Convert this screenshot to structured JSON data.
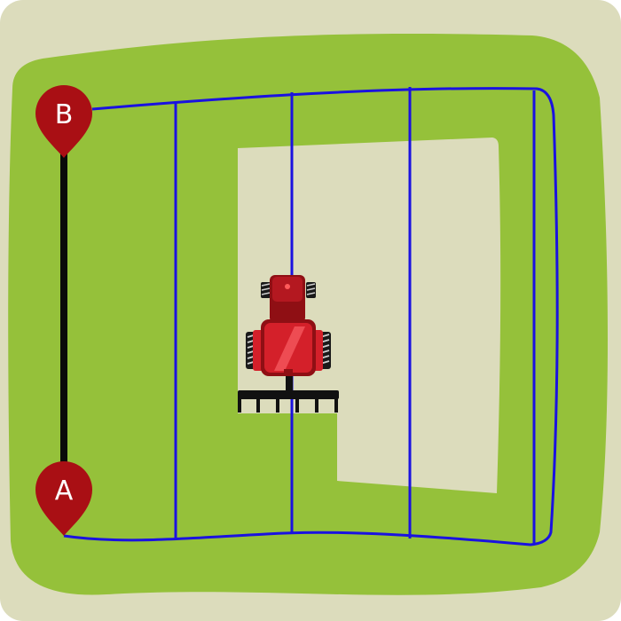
{
  "colors": {
    "background": "#dcdcbc",
    "field": "#95c13a",
    "unworked": "#dcdcbc",
    "guidance_line": "#1a12e0",
    "ab_line": "#0a0a0a",
    "pin": "#a90f14",
    "tractor_body": "#d4202a",
    "tractor_dark": "#8f0f14",
    "implement": "#111111"
  },
  "markers": {
    "point_a": {
      "label": "A",
      "icon": "map-pin-icon"
    },
    "point_b": {
      "label": "B",
      "icon": "map-pin-icon"
    }
  },
  "vehicle": {
    "icon": "tractor-icon",
    "implement_icon": "harrow-icon"
  },
  "guidance": {
    "pass_count": 5
  }
}
